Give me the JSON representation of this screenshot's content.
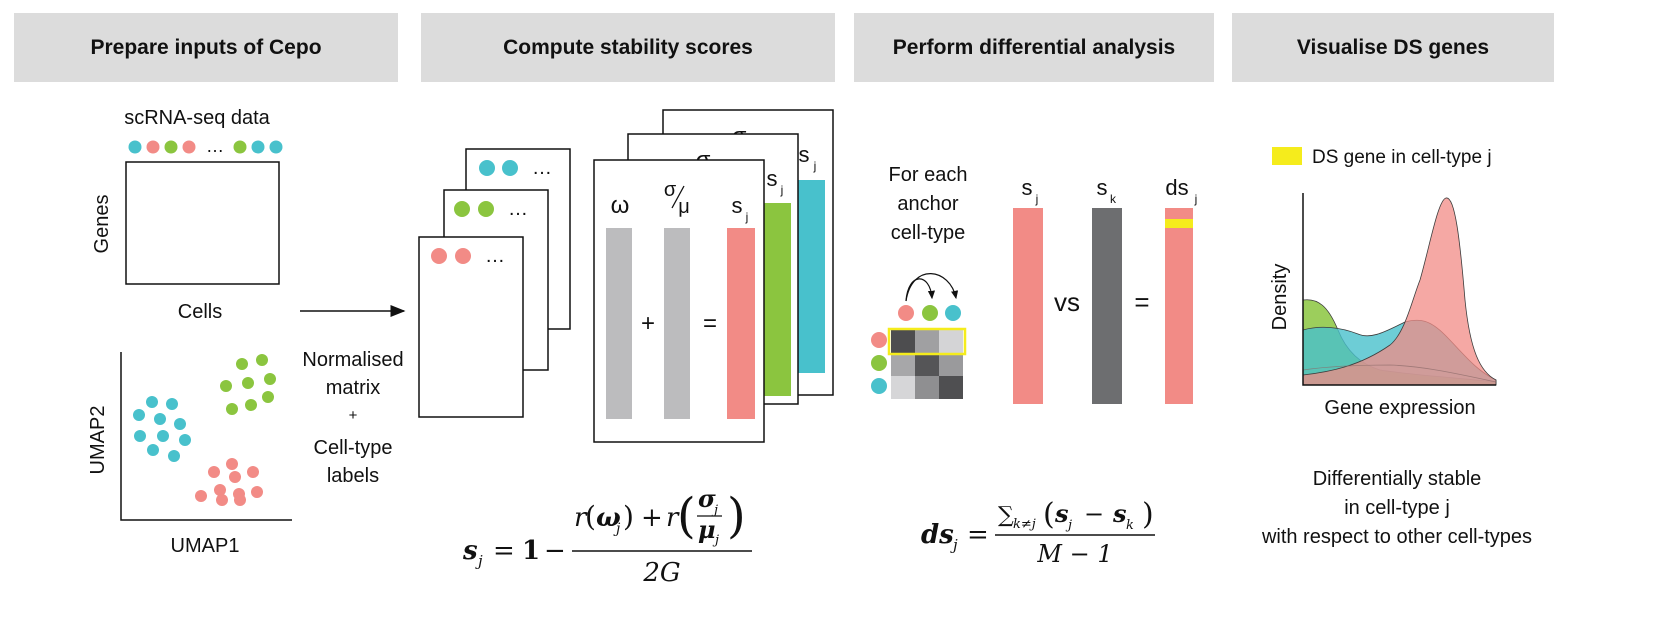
{
  "headers": [
    "Prepare inputs of Cepo",
    "Compute stability scores",
    "Perform differential analysis",
    "Visualise DS genes"
  ],
  "panel1": {
    "data_title": "scRNA-seq data",
    "genes_label": "Genes",
    "cells_label": "Cells",
    "umap_x_label": "UMAP1",
    "umap_y_label": "UMAP2",
    "ellipsis": "…"
  },
  "arrow_caption": {
    "line1": "Normalised",
    "line2": "matrix",
    "line3": "+",
    "line4": "Cell-type",
    "line5": "labels"
  },
  "panel2": {
    "dots": "…",
    "omega": "ω",
    "sigma": "σ",
    "mu": "μ",
    "s": "s",
    "sub_j": "j",
    "plus": "+",
    "equals": "=",
    "formula_lhs": "s",
    "formula_sub": "j",
    "formula_eq": "=",
    "formula_one": "1",
    "formula_minus": "−",
    "formula_r": "r",
    "formula_omega": "ω",
    "formula_sigma": "σ",
    "formula_mu": "μ",
    "formula_plus": "+",
    "formula_lparen": "(",
    "formula_rparen": ")",
    "formula_denominator": "2G"
  },
  "panel3": {
    "caption_line1": "For each",
    "caption_line2": "anchor",
    "caption_line3": "cell-type",
    "s": "s",
    "ds": "ds",
    "sub_j": "j",
    "sub_k": "k",
    "vs": "vs",
    "equals": "=",
    "formula_lhs": "ds",
    "formula_sub": "j",
    "formula_eq": "=",
    "formula_sum": "∑",
    "formula_sum_sub": "k≠j",
    "formula_lparen": "(",
    "formula_rparen": ")",
    "formula_s": "s",
    "formula_sub_j": "j",
    "formula_sub_k": "k",
    "formula_minus": "−",
    "formula_denominator": "M − 1"
  },
  "panel4": {
    "legend_label": "DS gene in cell-type j",
    "y_label": "Density",
    "x_label": "Gene expression",
    "caption_line1": "Differentially stable",
    "caption_line2": "in cell-type j",
    "caption_line3": "with respect to other cell-types"
  },
  "colors": {
    "header_bg": "#dcdcdc",
    "cyan": "#48c1cc",
    "green": "#8bc53f",
    "salmon": "#f28b86",
    "gray_bar": "#bcbcbe",
    "dark_bar": "#6d6e70",
    "yellow": "#f5ec1c"
  }
}
